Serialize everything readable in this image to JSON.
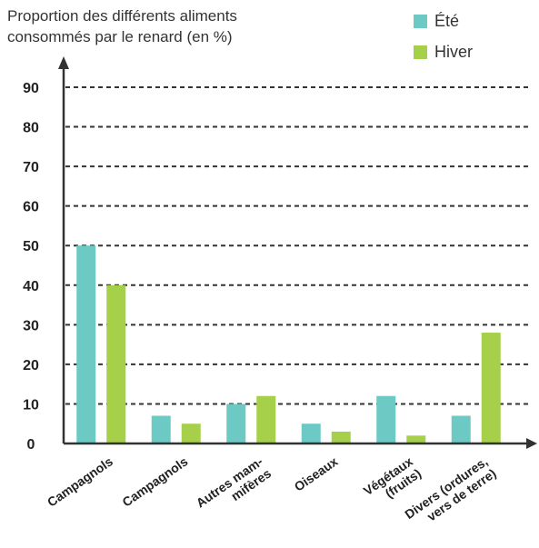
{
  "chart_data": {
    "type": "bar",
    "title": "Proportion des différents aliments consommés par le renard (en %)",
    "title_line1": "Proportion des différents aliments",
    "title_line2": "consommés par le renard (en %)",
    "categories": [
      "Campagnols",
      "Campagnols",
      "Autres mam-\nmifères",
      "Oiseaux",
      "Végétaux\n(fruits)",
      "Divers (ordures,\nvers de terre)"
    ],
    "series": [
      {
        "name": "Été",
        "color": "#6cc9c3",
        "values": [
          50,
          7,
          10,
          5,
          12,
          7
        ]
      },
      {
        "name": "Hiver",
        "color": "#a6d04a",
        "values": [
          40,
          5,
          12,
          3,
          2,
          28
        ]
      }
    ],
    "yticks": [
      0,
      10,
      20,
      30,
      40,
      50,
      60,
      70,
      80,
      90
    ],
    "ylim": [
      0,
      90
    ],
    "grid": "dashed horizontal",
    "legend_position": "top-right"
  }
}
